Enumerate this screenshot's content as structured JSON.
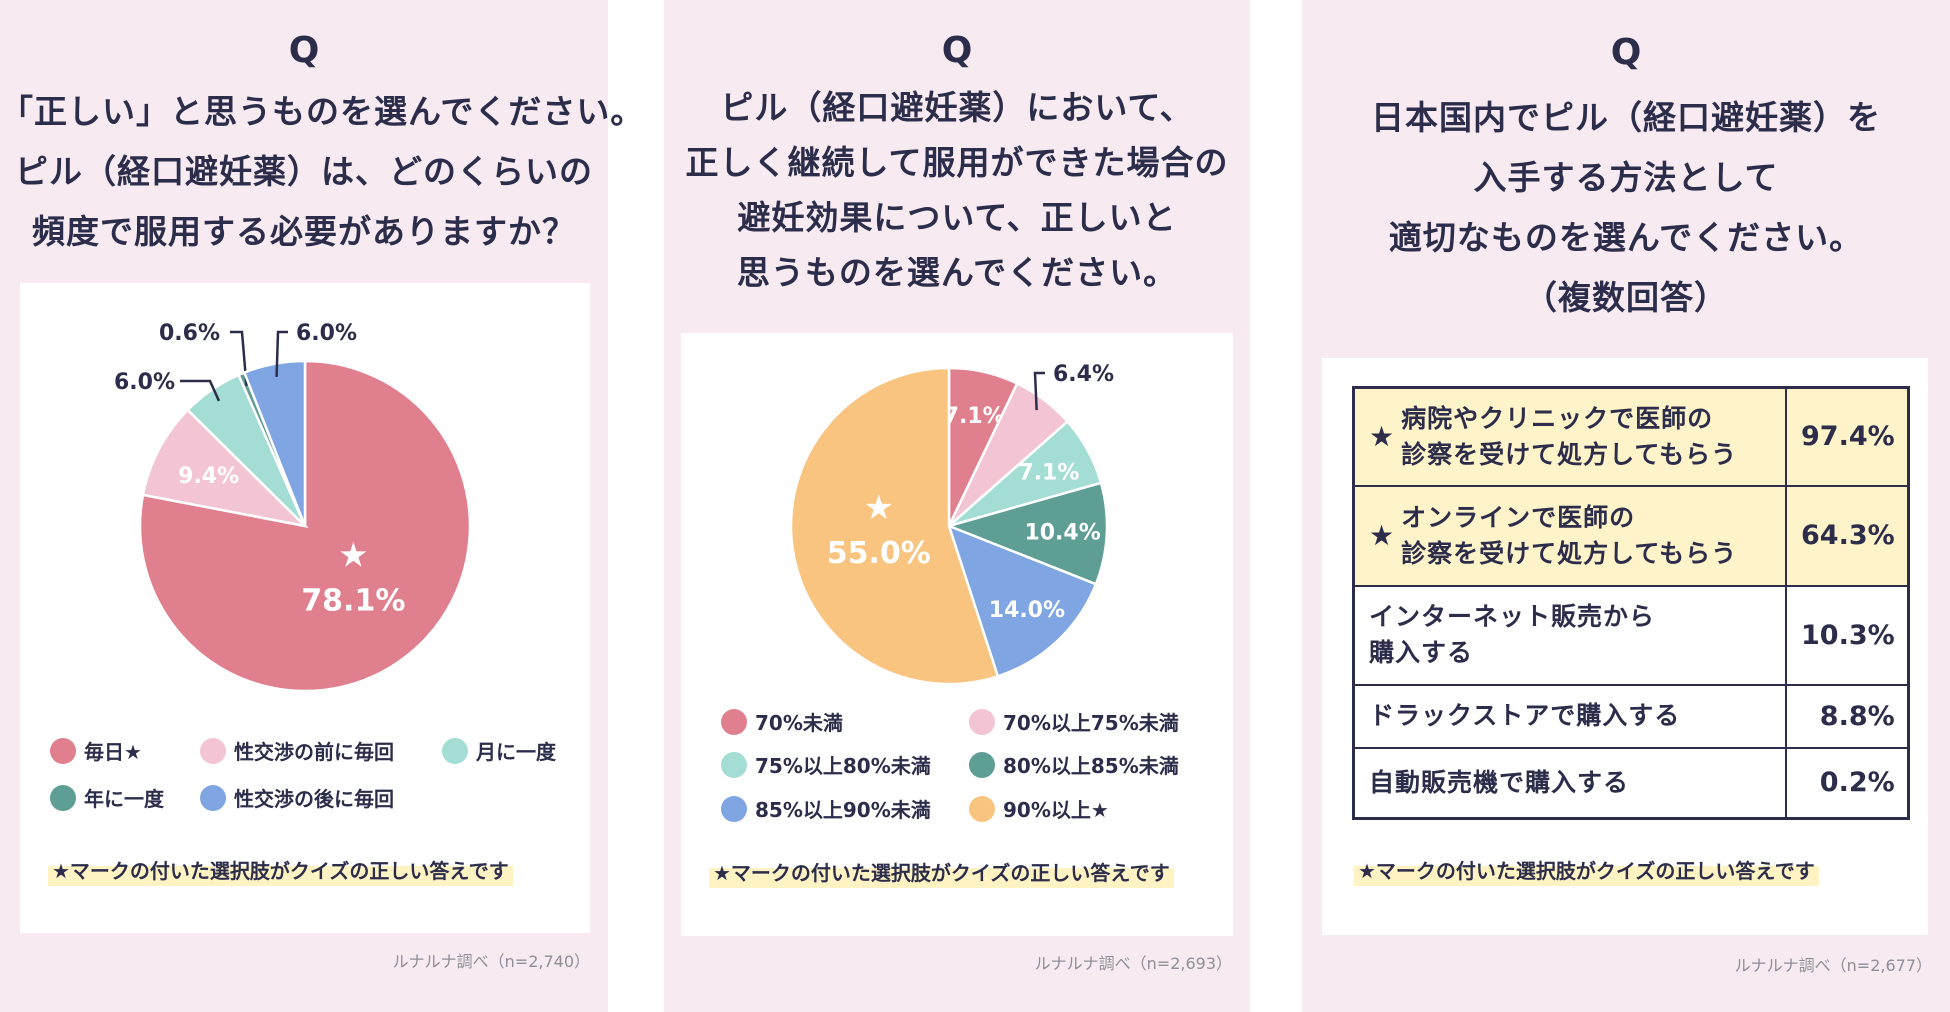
{
  "panels": [
    {
      "q": "Q",
      "question_lines": [
        "「正しい」と思うものを選んでください。",
        "ピル（経口避妊薬）は、どのくらいの",
        "頻度で服用する必要がありますか？"
      ],
      "legend": [
        {
          "label": "毎日★",
          "color": "#e0808f"
        },
        {
          "label": "性交渉の前に毎回",
          "color": "#f3c4d4"
        },
        {
          "label": "月に一度",
          "color": "#a3ddd4"
        },
        {
          "label": "年に一度",
          "color": "#5f9e94"
        },
        {
          "label": "性交渉の後に毎回",
          "color": "#7fa6e2"
        }
      ],
      "note": "★マークの付いた選択肢がクイズの正しい答えです",
      "source": "ルナルナ調べ（n=2,740）"
    },
    {
      "q": "Q",
      "question_lines": [
        "ピル（経口避妊薬）において、",
        "正しく継続して服用ができた場合の",
        "避妊効果について、正しいと",
        "思うものを選んでください。"
      ],
      "legend": [
        {
          "label": "70%未満",
          "color": "#e0808f"
        },
        {
          "label": "70%以上75%未満",
          "color": "#f3c4d4"
        },
        {
          "label": "75%以上80%未満",
          "color": "#a3ddd4"
        },
        {
          "label": "80%以上85%未満",
          "color": "#5f9e94"
        },
        {
          "label": "85%以上90%未満",
          "color": "#7fa6e2"
        },
        {
          "label": "90%以上★",
          "color": "#f8c47f"
        }
      ],
      "note": "★マークの付いた選択肢がクイズの正しい答えです",
      "source": "ルナルナ調べ（n=2,693）"
    },
    {
      "q": "Q",
      "question_lines": [
        "日本国内でピル（経口避妊薬）を",
        "入手する方法として",
        "適切なものを選んでください。",
        "（複数回答）"
      ],
      "note": "★マークの付いた選択肢がクイズの正しい答えです",
      "source": "ルナルナ調べ（n=2,677）"
    }
  ],
  "chart_data": [
    {
      "type": "pie",
      "categories": [
        "毎日",
        "性交渉の前に毎回",
        "月に一度",
        "年に一度",
        "性交渉の後に毎回"
      ],
      "values": [
        78.1,
        9.4,
        6.0,
        0.6,
        6.0
      ],
      "labels": [
        "78.1%",
        "9.4%",
        "6.0%",
        "0.6%",
        "6.0%"
      ],
      "colors": [
        "#e0808f",
        "#f3c4d4",
        "#a3ddd4",
        "#5f9e94",
        "#7fa6e2"
      ],
      "correct": "毎日",
      "star": "★"
    },
    {
      "type": "pie",
      "categories": [
        "70%未満",
        "70%以上75%未満",
        "75%以上80%未満",
        "80%以上85%未満",
        "85%以上90%未満",
        "90%以上"
      ],
      "values": [
        7.1,
        6.4,
        7.1,
        10.4,
        14.0,
        55.0
      ],
      "labels": [
        "7.1%",
        "6.4%",
        "7.1%",
        "10.4%",
        "14.0%",
        "55.0%"
      ],
      "colors": [
        "#e0808f",
        "#f3c4d4",
        "#a3ddd4",
        "#5f9e94",
        "#7fa6e2",
        "#f8c47f"
      ],
      "correct": "90%以上",
      "star": "★"
    },
    {
      "type": "table",
      "rows": [
        {
          "star": "★",
          "option_lines": [
            "病院やクリニックで医師の",
            "診察を受けて処方してもらう"
          ],
          "value": "97.4%",
          "correct": true
        },
        {
          "star": "★",
          "option_lines": [
            "オンラインで医師の",
            "診察を受けて処方してもらう"
          ],
          "value": "64.3%",
          "correct": true
        },
        {
          "star": "",
          "option_lines": [
            "インターネット販売から",
            "購入する"
          ],
          "value": "10.3%",
          "correct": false
        },
        {
          "star": "",
          "option_lines": [
            "ドラックストアで購入する"
          ],
          "value": "8.8%",
          "correct": false
        },
        {
          "star": "",
          "option_lines": [
            "自動販売機で購入する"
          ],
          "value": "0.2%",
          "correct": false
        }
      ]
    }
  ]
}
